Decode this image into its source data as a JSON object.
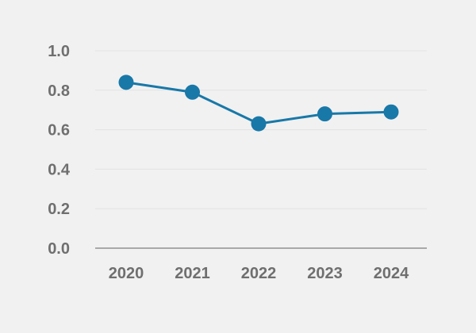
{
  "chart_data": {
    "type": "line",
    "title": "",
    "xlabel": "",
    "ylabel": "",
    "categories": [
      "2020",
      "2021",
      "2022",
      "2023",
      "2024"
    ],
    "series": [
      {
        "values": [
          0.84,
          0.79,
          0.63,
          0.68,
          0.69
        ]
      }
    ],
    "ylim": [
      0,
      1
    ],
    "yticks": [
      "0.0",
      "0.2",
      "0.4",
      "0.6",
      "0.8",
      "1.0"
    ],
    "grid": true,
    "legend": "none"
  },
  "colors": {
    "background": "#f1f1f1",
    "line": "#1878a8",
    "marker": "#1878a8",
    "grid": "#e2e2e2",
    "axis": "#a8a8a8",
    "tick_text": "#6f6f6f"
  }
}
